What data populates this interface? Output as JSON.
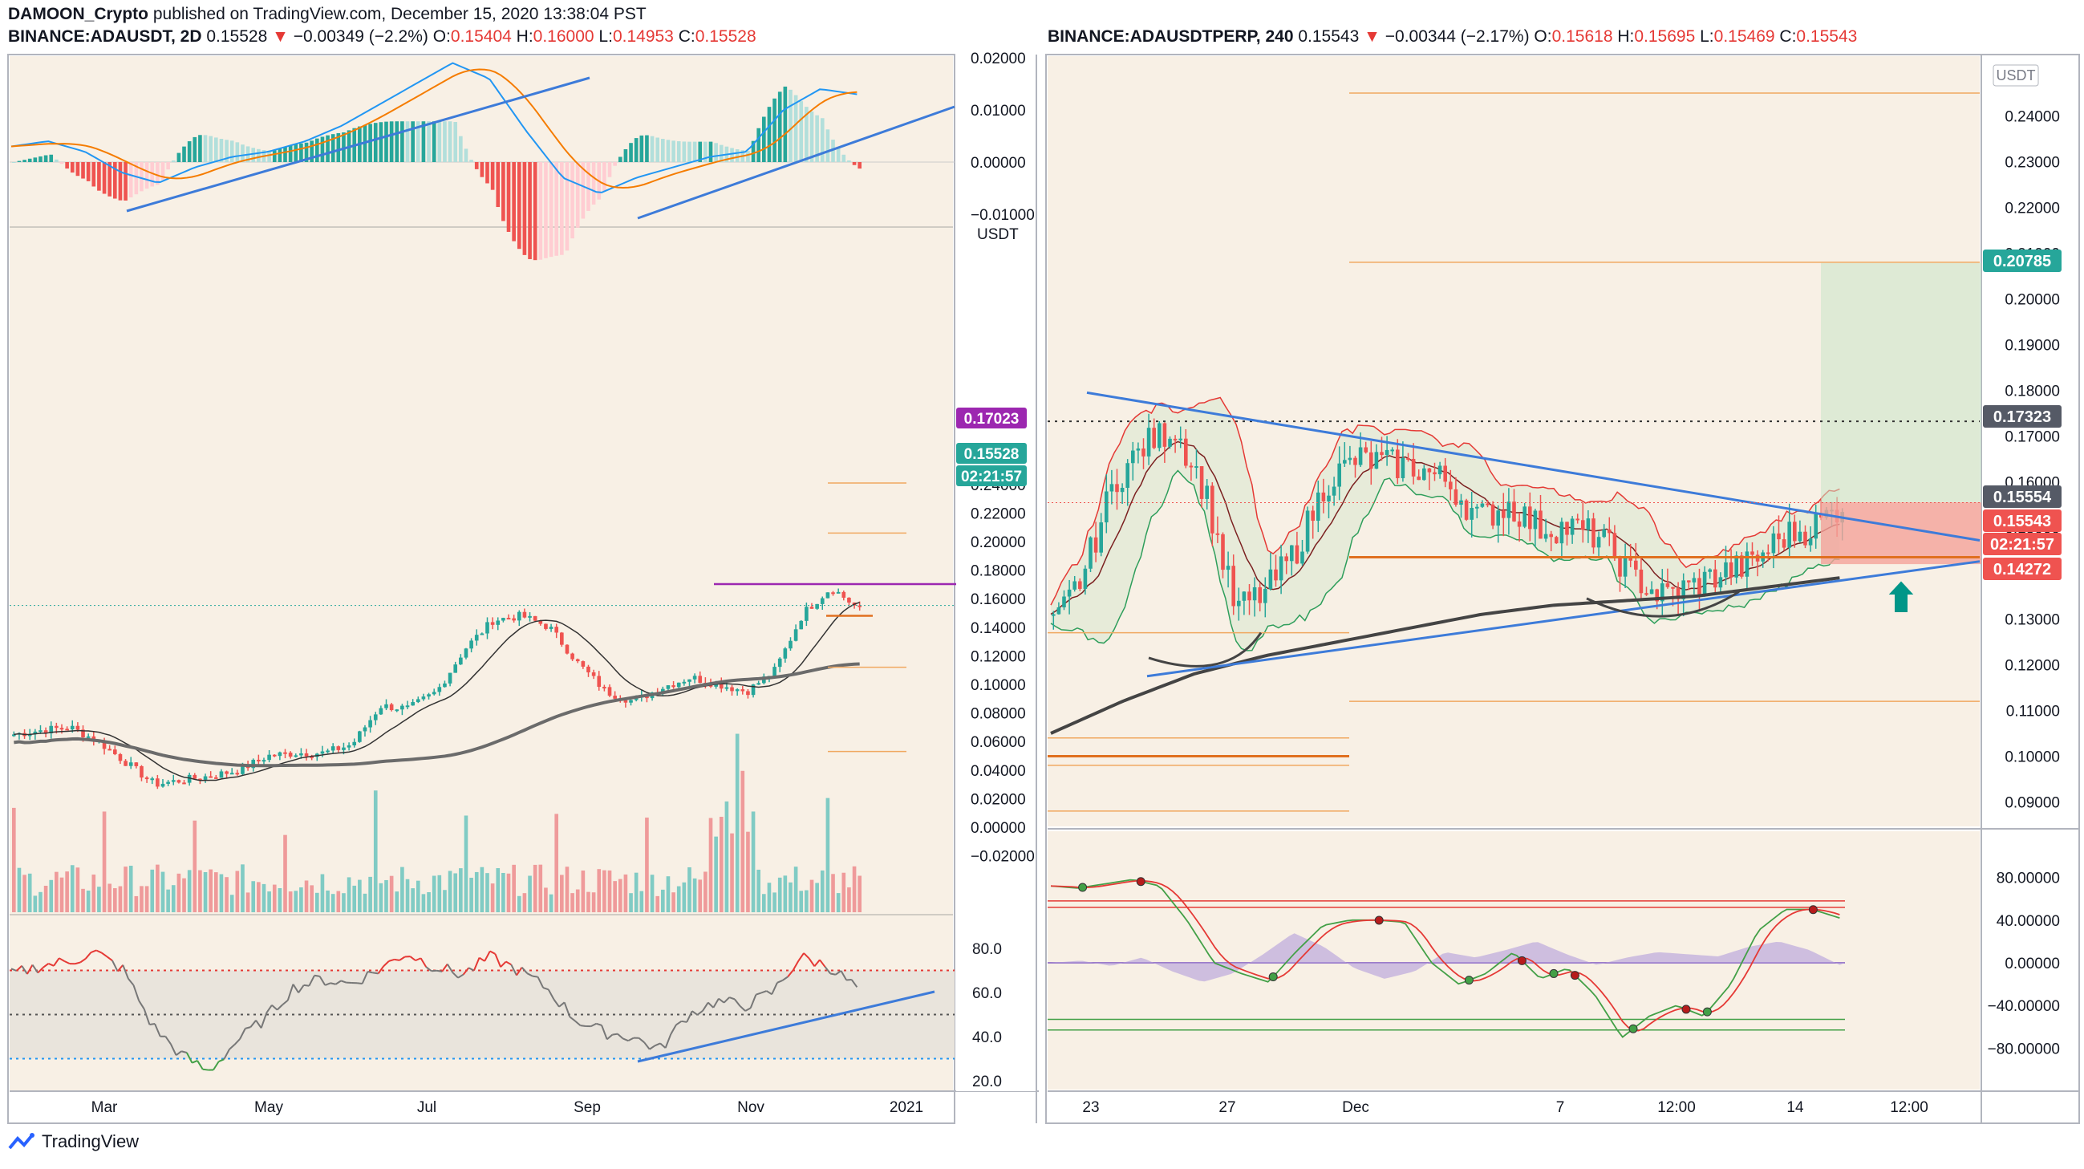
{
  "header": {
    "author": "DAMOON_Crypto",
    "published": "published on TradingView.com, December 15, 2020 13:38:04 PST"
  },
  "left_chart": {
    "symbol": "BINANCE:ADAUSDT, 2D",
    "last": "0.15528",
    "change": "−0.00349 (−2.2%)",
    "open": "0.15404",
    "high": "0.16000",
    "low": "0.14953",
    "close": "0.15528",
    "currency": "USDT",
    "macd_ticks": [
      "0.02000",
      "0.01000",
      "0.00000",
      "−0.01000"
    ],
    "price_ticks": [
      "0.24000",
      "0.22000",
      "0.20000",
      "0.18000",
      "0.16000",
      "0.14000",
      "0.12000",
      "0.10000",
      "0.08000",
      "0.06000",
      "0.04000",
      "0.02000",
      "0.00000",
      "−0.02000"
    ],
    "rsi_ticks": [
      "80.0",
      "60.0",
      "40.0",
      "20.0"
    ],
    "time_ticks": [
      "Mar",
      "May",
      "Jul",
      "Sep",
      "Nov",
      "2021"
    ],
    "label_resistance": "0.17023",
    "label_price": "0.15528",
    "label_countdown": "02:21:57"
  },
  "right_chart": {
    "symbol": "BINANCE:ADAUSDTPERP, 240",
    "last": "0.15543",
    "change": "−0.00344 (−2.17%)",
    "open": "0.15618",
    "high": "0.15695",
    "low": "0.15469",
    "close": "0.15543",
    "currency": "USDT",
    "price_ticks": [
      "0.24000",
      "0.23000",
      "0.22000",
      "0.21000",
      "0.20000",
      "0.19000",
      "0.18000",
      "0.17000",
      "0.16000",
      "0.15000",
      "0.14000",
      "0.13000",
      "0.12000",
      "0.11000",
      "0.10000",
      "0.09000"
    ],
    "osc_ticks": [
      "80.00000",
      "40.00000",
      "0.00000",
      "−40.00000",
      "−80.00000"
    ],
    "time_ticks": [
      "23",
      "27",
      "Dec",
      "7",
      "12:00",
      "14",
      "12:00"
    ],
    "label_target": "0.20785",
    "label_level": "0.17323",
    "label_mark": "0.15554",
    "label_price": "0.15543",
    "label_countdown": "02:21:57",
    "label_stop": "0.14272"
  },
  "footer": {
    "brand": "TradingView"
  },
  "colors": {
    "up": "#26a69a",
    "down": "#ef5350",
    "trend": "#3d7bd9",
    "bg": "#f8f0e5",
    "purple": "#9c27b0",
    "orange": "#e07020"
  },
  "chart_data": [
    {
      "type": "candlestick",
      "title": "BINANCE:ADAUSDT, 2D",
      "x": [
        "Mar",
        "May",
        "Jul",
        "Sep",
        "Nov",
        "2021"
      ],
      "ylim": [
        -0.03,
        0.25
      ],
      "key_points": [
        {
          "t": "Jan",
          "close": 0.065
        },
        {
          "t": "Mar",
          "close": 0.035
        },
        {
          "t": "May",
          "close": 0.05
        },
        {
          "t": "Jun",
          "close": 0.085
        },
        {
          "t": "Jul",
          "close": 0.13
        },
        {
          "t": "Aug",
          "close": 0.145
        },
        {
          "t": "Sep",
          "close": 0.09
        },
        {
          "t": "Oct",
          "close": 0.1
        },
        {
          "t": "Nov",
          "close": 0.105
        },
        {
          "t": "late-Nov",
          "close": 0.165
        },
        {
          "t": "Dec",
          "close": 0.15528
        }
      ],
      "levels": [
        0.17023,
        0.15528
      ]
    },
    {
      "type": "candlestick",
      "title": "BINANCE:ADAUSDTPERP, 240",
      "x": [
        "23",
        "27",
        "Dec",
        "7",
        "12:00",
        "14",
        "12:00"
      ],
      "ylim": [
        0.085,
        0.245
      ],
      "key_points": [
        {
          "t": "22",
          "close": 0.128
        },
        {
          "t": "23",
          "close": 0.16
        },
        {
          "t": "24",
          "close": 0.17
        },
        {
          "t": "25",
          "close": 0.132
        },
        {
          "t": "27",
          "close": 0.16
        },
        {
          "t": "Dec",
          "close": 0.165
        },
        {
          "t": "3",
          "close": 0.15
        },
        {
          "t": "7",
          "close": 0.143
        },
        {
          "t": "9",
          "close": 0.135
        },
        {
          "t": "13",
          "close": 0.15
        },
        {
          "t": "14",
          "close": 0.155
        }
      ],
      "levels": [
        0.20785,
        0.17323,
        0.15554,
        0.15543,
        0.14272
      ]
    }
  ]
}
